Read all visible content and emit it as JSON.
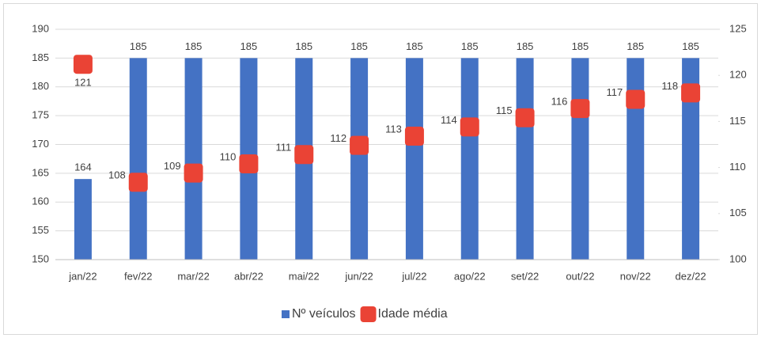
{
  "chart_data": {
    "type": "bar-line",
    "categories": [
      "jan/22",
      "fev/22",
      "mar/22",
      "abr/22",
      "mai/22",
      "jun/22",
      "jul/22",
      "ago/22",
      "set/22",
      "out/22",
      "nov/22",
      "dez/22"
    ],
    "series": [
      {
        "name": "Nº veículos",
        "color": "#4472c4",
        "type": "bar",
        "values": [
          164,
          185,
          185,
          185,
          185,
          185,
          185,
          185,
          185,
          185,
          185,
          185
        ]
      },
      {
        "name": "Idade média",
        "color": "#ea4335",
        "type": "marker",
        "axis": "y2",
        "values": [
          121.2,
          108.4,
          109.4,
          110.4,
          111.4,
          112.4,
          113.4,
          114.4,
          115.4,
          116.4,
          117.4,
          118.1
        ],
        "value_labels": [
          "121",
          "108",
          "109",
          "110",
          "111",
          "112",
          "113",
          "114",
          "115",
          "116",
          "117",
          "118"
        ]
      }
    ],
    "ylim": [
      150,
      190
    ],
    "yticks": [
      150,
      155,
      160,
      165,
      170,
      175,
      180,
      185,
      190
    ],
    "y2lim": [
      100,
      125
    ],
    "y2ticks": [
      100,
      105,
      110,
      115,
      120,
      125
    ],
    "grid": true,
    "legend": "bottom"
  }
}
